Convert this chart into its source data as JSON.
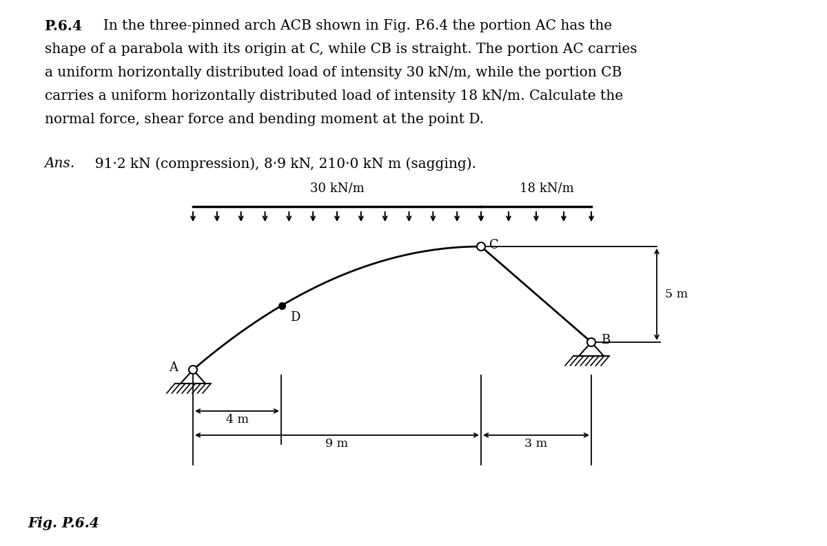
{
  "fig_label": "Fig. P.6.4",
  "load1_label": "30 kN/m",
  "load2_label": "18 kN/m",
  "dim_4m": "4 m",
  "dim_9m": "9 m",
  "dim_3m": "3 m",
  "dim_5m": "5 m",
  "point_A": "A",
  "point_B": "B",
  "point_C": "C",
  "point_D": "D",
  "bg_color": "#ffffff",
  "line_color": "#000000",
  "text_color": "#000000",
  "title_line1": "P.6.4   In the three-pinned arch ACB shown in Fig. P.6.4 the portion AC has the",
  "title_line2": "shape of a parabola with its origin at C, while CB is straight. The portion AC carries",
  "title_line3": "a uniform horizontally distributed load of intensity 30 kN/m, while the portion CB",
  "title_line4": "carries a uniform horizontally distributed load of intensity 18 kN/m. Calculate the",
  "title_line5": "normal force, shear force and bending moment at the point D.",
  "ans_line": "Ans.   91·2 kN (compression), 8·9 kN, 210·0 kN m (sagging)."
}
